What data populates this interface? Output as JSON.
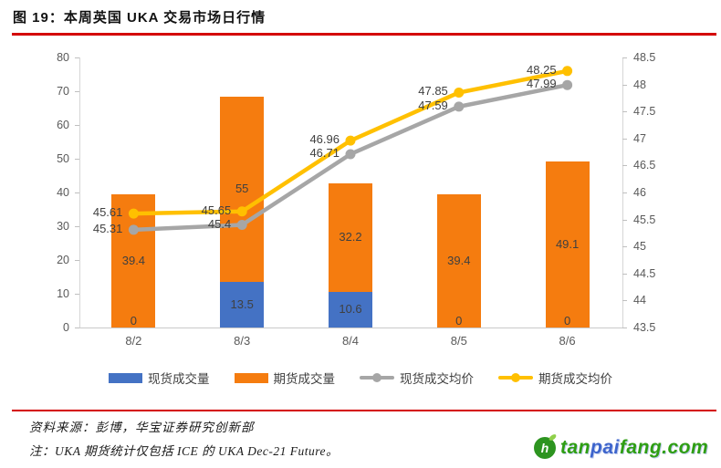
{
  "title": "图 19：本周英国 UKA 交易市场日行情",
  "palette": {
    "accent_red": "#d40000",
    "bar_blue": "#4472C4",
    "bar_orange": "#F57C0F",
    "line_gray": "#A6A6A6",
    "line_yellow": "#FFC000",
    "axis_text": "#595959",
    "label_text": "#404040",
    "logo_green": "#2f9e12",
    "logo_blue": "#3d64cc"
  },
  "chart_data": {
    "type": "bar",
    "subtype": "stacked-bars-with-lines-combo",
    "categories": [
      "8/2",
      "8/3",
      "8/4",
      "8/5",
      "8/6"
    ],
    "series": [
      {
        "name": "现货成交量",
        "type": "bar",
        "axis": "left",
        "color": "#4472C4",
        "values": [
          0,
          13.5,
          10.6,
          0,
          0
        ],
        "labels": [
          "0",
          "13.5",
          "10.6",
          "0",
          "0"
        ]
      },
      {
        "name": "期货成交量",
        "type": "bar",
        "axis": "left",
        "color": "#F57C0F",
        "values": [
          39.4,
          55,
          32.2,
          39.4,
          49.1
        ],
        "labels": [
          "39.4",
          "55",
          "32.2",
          "39.4",
          "49.1"
        ]
      },
      {
        "name": "现货成交均价",
        "type": "line",
        "axis": "right",
        "color": "#A6A6A6",
        "values": [
          45.31,
          45.4,
          46.71,
          47.59,
          47.99
        ],
        "labels": [
          "45.31",
          "45.4",
          "46.71",
          "47.59",
          "47.99"
        ]
      },
      {
        "name": "期货成交均价",
        "type": "line",
        "axis": "right",
        "color": "#FFC000",
        "values": [
          45.61,
          45.65,
          46.96,
          47.85,
          48.25
        ],
        "labels": [
          "45.61",
          "45.65",
          "46.96",
          "47.85",
          "48.25"
        ]
      }
    ],
    "axes": {
      "left": {
        "min": 0,
        "max": 80,
        "step": 10,
        "ticks": [
          "0",
          "10",
          "20",
          "30",
          "40",
          "50",
          "60",
          "70",
          "80"
        ]
      },
      "right": {
        "min": 43.5,
        "max": 48.5,
        "step": 0.5,
        "ticks": [
          "43.5",
          "44",
          "44.5",
          "45",
          "45.5",
          "46",
          "46.5",
          "47",
          "47.5",
          "48",
          "48.5"
        ]
      }
    },
    "grid": false,
    "legend_position": "bottom"
  },
  "legend": [
    {
      "label": "现货成交量",
      "marker": "blue-bar-swatch"
    },
    {
      "label": "期货成交量",
      "marker": "orange-bar-swatch"
    },
    {
      "label": "现货成交均价",
      "marker": "gray-line-dot-swatch"
    },
    {
      "label": "期货成交均价",
      "marker": "yellow-line-dot-swatch"
    }
  ],
  "footer": {
    "source": "资料来源：彭博，华宝证券研究创新部",
    "note": "注：UKA 期货统计仅包括 ICE 的 UKA Dec-21 Future。"
  },
  "logo": {
    "icon_letter": "h",
    "parts": [
      "tan",
      "pai",
      "fang.com"
    ]
  }
}
